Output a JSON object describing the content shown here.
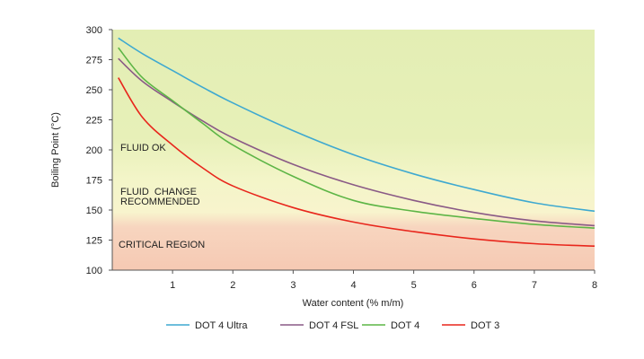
{
  "chart_data": {
    "type": "line",
    "xlabel": "Water content (% m/m)",
    "ylabel": "Boiling Point (°C)",
    "xlim": [
      0,
      8
    ],
    "ylim": [
      100,
      300
    ],
    "x_ticks": [
      1,
      2,
      3,
      4,
      5,
      6,
      7,
      8
    ],
    "y_ticks": [
      100,
      125,
      150,
      175,
      200,
      225,
      250,
      275,
      300
    ],
    "grid": false,
    "legend_position": "bottom",
    "regions": [
      {
        "label": "FLUID OK",
        "color": "#e3eeb4"
      },
      {
        "label_lines": [
          "FLUID  CHANGE",
          "RECOMMENDED"
        ],
        "color": "#f4f3c4"
      },
      {
        "label": "CRITICAL REGION",
        "color": "#f6cdb8"
      }
    ],
    "series": [
      {
        "name": "DOT 4 Ultra",
        "color": "#3fa9d0",
        "x": [
          0.1,
          0.5,
          1,
          1.5,
          2,
          3,
          4,
          5,
          6,
          7,
          8
        ],
        "y": [
          293,
          280,
          266,
          252,
          239,
          216,
          196,
          180,
          167,
          156,
          149
        ]
      },
      {
        "name": "DOT 4 FSL",
        "color": "#8a5a86",
        "x": [
          0.1,
          0.5,
          1,
          1.5,
          2,
          3,
          4,
          5,
          6,
          7,
          8
        ],
        "y": [
          276,
          257,
          240,
          224,
          210,
          188,
          171,
          158,
          148,
          141,
          137
        ]
      },
      {
        "name": "DOT 4",
        "color": "#5db546",
        "x": [
          0.1,
          0.5,
          1,
          1.5,
          2,
          3,
          4,
          5,
          6,
          7,
          8
        ],
        "y": [
          285,
          260,
          241,
          222,
          204,
          178,
          158,
          149,
          143,
          138,
          135
        ]
      },
      {
        "name": "DOT 3",
        "color": "#e8261c",
        "x": [
          0.1,
          0.5,
          1,
          1.5,
          2,
          3,
          4,
          5,
          6,
          7,
          8
        ],
        "y": [
          260,
          227,
          204,
          185,
          170,
          152,
          140,
          132,
          126,
          122,
          120
        ]
      }
    ]
  }
}
